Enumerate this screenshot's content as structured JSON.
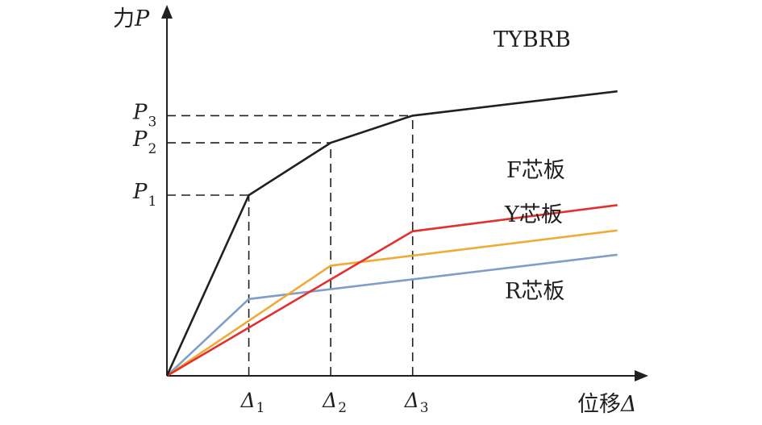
{
  "chart_data": {
    "type": "line",
    "title": "",
    "ylabel_prefix": "力",
    "ylabel_symbol": "P",
    "xlabel_prefix": "位移",
    "xlabel_symbol": "Δ",
    "axes_numeric_ticks": false,
    "xlim": [
      0,
      5.7
    ],
    "ylim": [
      0,
      4.0
    ],
    "x_ticks": [
      {
        "symbol": "Δ",
        "sub": "1",
        "value": 1
      },
      {
        "symbol": "Δ",
        "sub": "2",
        "value": 2
      },
      {
        "symbol": "Δ",
        "sub": "3",
        "value": 3
      }
    ],
    "y_ticks": [
      {
        "symbol": "P",
        "sub": "1",
        "value": 2.0
      },
      {
        "symbol": "P",
        "sub": "2",
        "value": 2.58
      },
      {
        "symbol": "P",
        "sub": "3",
        "value": 2.88
      }
    ],
    "series": [
      {
        "name": "TYBRB",
        "color": "#231f20",
        "x": [
          0,
          1,
          2,
          3,
          5.5
        ],
        "y": [
          0,
          2.0,
          2.58,
          2.88,
          3.15
        ]
      },
      {
        "name": "F芯板",
        "color": "#e2302f",
        "x": [
          0,
          3,
          5.5
        ],
        "y": [
          0,
          1.6,
          1.89
        ]
      },
      {
        "name": "Y芯板",
        "color": "#f0ab35",
        "x": [
          0,
          2,
          5.5
        ],
        "y": [
          0,
          1.22,
          1.61
        ]
      },
      {
        "name": "R芯板",
        "color": "#7f9ec9",
        "x": [
          0,
          1,
          5.5
        ],
        "y": [
          0,
          0.85,
          1.34
        ]
      }
    ],
    "grid": false,
    "legend": "inline-labels-right"
  }
}
